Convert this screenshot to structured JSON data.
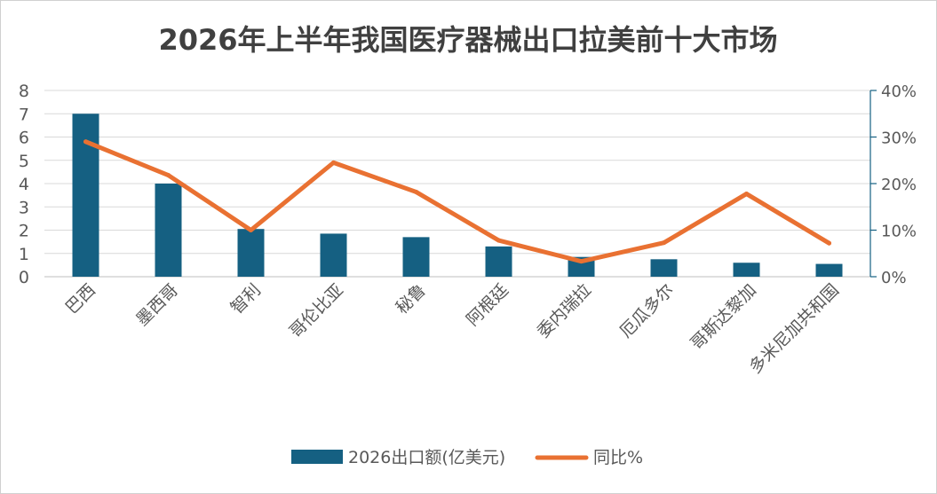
{
  "chart_data": {
    "type": "bar",
    "title": "2026年上半年我国医疗器械出口拉美前十大市场",
    "categories": [
      "巴西",
      "墨西哥",
      "智利",
      "哥伦比亚",
      "秘鲁",
      "阿根廷",
      "委内瑞拉",
      "厄瓜多尔",
      "哥斯达黎加",
      "多米尼加共和国"
    ],
    "series": [
      {
        "name": "2026出口额(亿美元)",
        "kind": "bar",
        "axis": "left",
        "values": [
          7.0,
          4.0,
          2.05,
          1.85,
          1.7,
          1.3,
          0.85,
          0.75,
          0.6,
          0.55
        ],
        "color": "#156082"
      },
      {
        "name": "同比%",
        "kind": "line",
        "axis": "right",
        "values": [
          29,
          21.8,
          10,
          24.5,
          18.2,
          7.8,
          3.3,
          7.3,
          17.8,
          7.2
        ],
        "color": "#E97132"
      }
    ],
    "y_left": {
      "min": 0,
      "max": 8,
      "ticks": [
        "0",
        "1",
        "2",
        "3",
        "4",
        "5",
        "6",
        "7",
        "8"
      ]
    },
    "y_right": {
      "min": 0,
      "max": 40,
      "ticks": [
        "0%",
        "10%",
        "20%",
        "30%",
        "40%"
      ],
      "color": "#156082"
    },
    "grid": true,
    "legend_position": "bottom"
  }
}
